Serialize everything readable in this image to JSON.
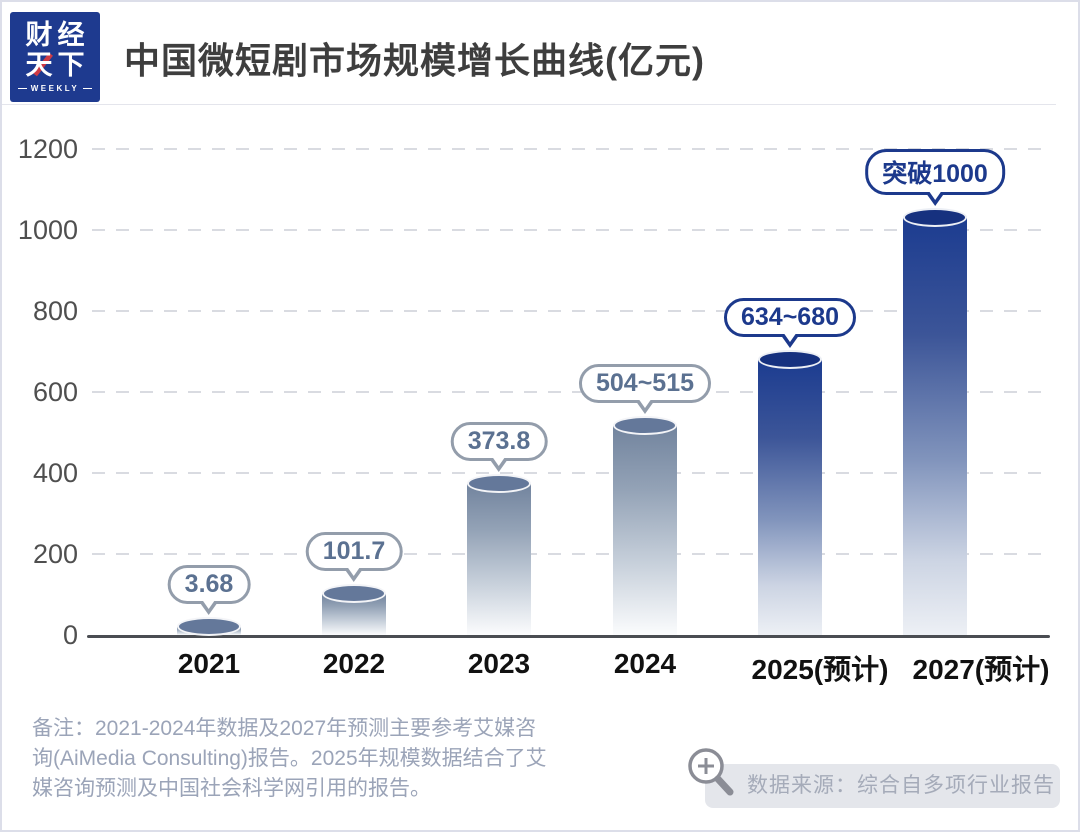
{
  "header": {
    "logo": {
      "line1": "财经",
      "line2": "天下",
      "weekly": "WEEKLY"
    },
    "title": "中国微短剧市场规模增长曲线(亿元)"
  },
  "chart_data": {
    "type": "bar",
    "bar_style": "3d-cylinder",
    "title": "中国微短剧市场规模增长曲线(亿元)",
    "unit": "亿元",
    "xlabel": "",
    "ylabel": "",
    "ylim": [
      0,
      1200
    ],
    "yticks": [
      0,
      200,
      400,
      600,
      800,
      1000,
      1200
    ],
    "grid": "horizontal-dashed",
    "bars": [
      {
        "category": "2021",
        "value": 3.68,
        "label": "3.68",
        "forecast": false
      },
      {
        "category": "2022",
        "value": 101.7,
        "label": "101.7",
        "forecast": false
      },
      {
        "category": "2023",
        "value": 373.8,
        "label": "373.8",
        "forecast": false
      },
      {
        "category": "2024",
        "value": 515,
        "label": "504~515",
        "forecast": false
      },
      {
        "category": "2025(预计)",
        "value": 680,
        "label": "634~680",
        "forecast": true
      },
      {
        "category": "2027(预计)",
        "value": 1030,
        "label": "突破1000",
        "forecast": true
      }
    ]
  },
  "footer": {
    "note_lines": [
      "备注：2021-2024年数据及2027年预测主要参考艾媒咨",
      "询(AiMedia  Consulting)报告。2025年规模数据结合了艾",
      "媒咨询预测及中国社会科学网引用的报告。"
    ],
    "source": "数据来源：综合自多项行业报告"
  },
  "colors": {
    "logo_bg": "#1e3a8f",
    "logo_accent": "#ce3a44",
    "title_text": "#3e3e3e",
    "historical_bar_top": "#64789a",
    "forecast_bar_top": "#16317f",
    "historical_callout": "#5b7191",
    "forecast_callout": "#1c398c",
    "axis_line": "#4a4d52",
    "gridline": "#d9dbe1",
    "note_text": "#9ba4b8",
    "source_pill_bg": "#e4e6eb"
  }
}
